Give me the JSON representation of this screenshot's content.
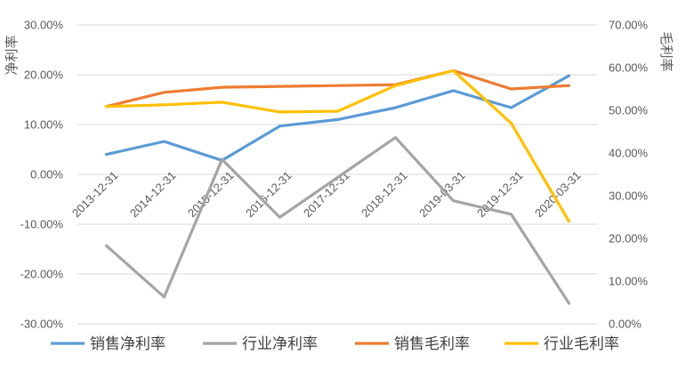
{
  "chart_data": {
    "type": "line",
    "categories": [
      "2013-12-31",
      "2014-12-31",
      "2015-12-31",
      "2016-12-31",
      "2017-12-31",
      "2018-12-31",
      "2019-03-31",
      "2019-12-31",
      "2020-03-31"
    ],
    "y_left": {
      "label": "净利率",
      "ylim": [
        -30,
        30
      ],
      "ticks": [
        -30,
        -20,
        -10,
        0,
        10,
        20,
        30
      ],
      "tick_labels": [
        "-30.00%",
        "-20.00%",
        "-10.00%",
        "0.00%",
        "10.00%",
        "20.00%",
        "30.00%"
      ]
    },
    "y_right": {
      "label": "毛利率",
      "ylim": [
        0,
        70
      ],
      "ticks": [
        0,
        10,
        20,
        30,
        40,
        50,
        60,
        70
      ],
      "tick_labels": [
        "0.00%",
        "10.00%",
        "20.00%",
        "30.00%",
        "40.00%",
        "50.00%",
        "60.00%",
        "70.00%"
      ]
    },
    "series": [
      {
        "name": "销售净利率",
        "axis": "left",
        "color": "#5B9BD5",
        "values": [
          4.0,
          6.6,
          2.8,
          9.7,
          11.0,
          13.4,
          16.8,
          13.4,
          19.8
        ]
      },
      {
        "name": "行业净利率",
        "axis": "left",
        "color": "#A5A5A5",
        "values": [
          -14.3,
          -24.6,
          3.0,
          -8.6,
          -0.6,
          7.4,
          -5.3,
          -8.0,
          -25.9
        ]
      },
      {
        "name": "销售毛利率",
        "axis": "right",
        "color": "#ED7D31",
        "values": [
          50.9,
          54.2,
          55.4,
          55.6,
          55.8,
          56.0,
          59.3,
          55.0,
          55.8
        ]
      },
      {
        "name": "行业毛利率",
        "axis": "right",
        "color": "#FFC000",
        "values": [
          50.9,
          51.3,
          51.9,
          49.6,
          49.8,
          55.8,
          59.3,
          47.0,
          24.0
        ]
      }
    ],
    "grid": true,
    "legend": "bottom"
  }
}
